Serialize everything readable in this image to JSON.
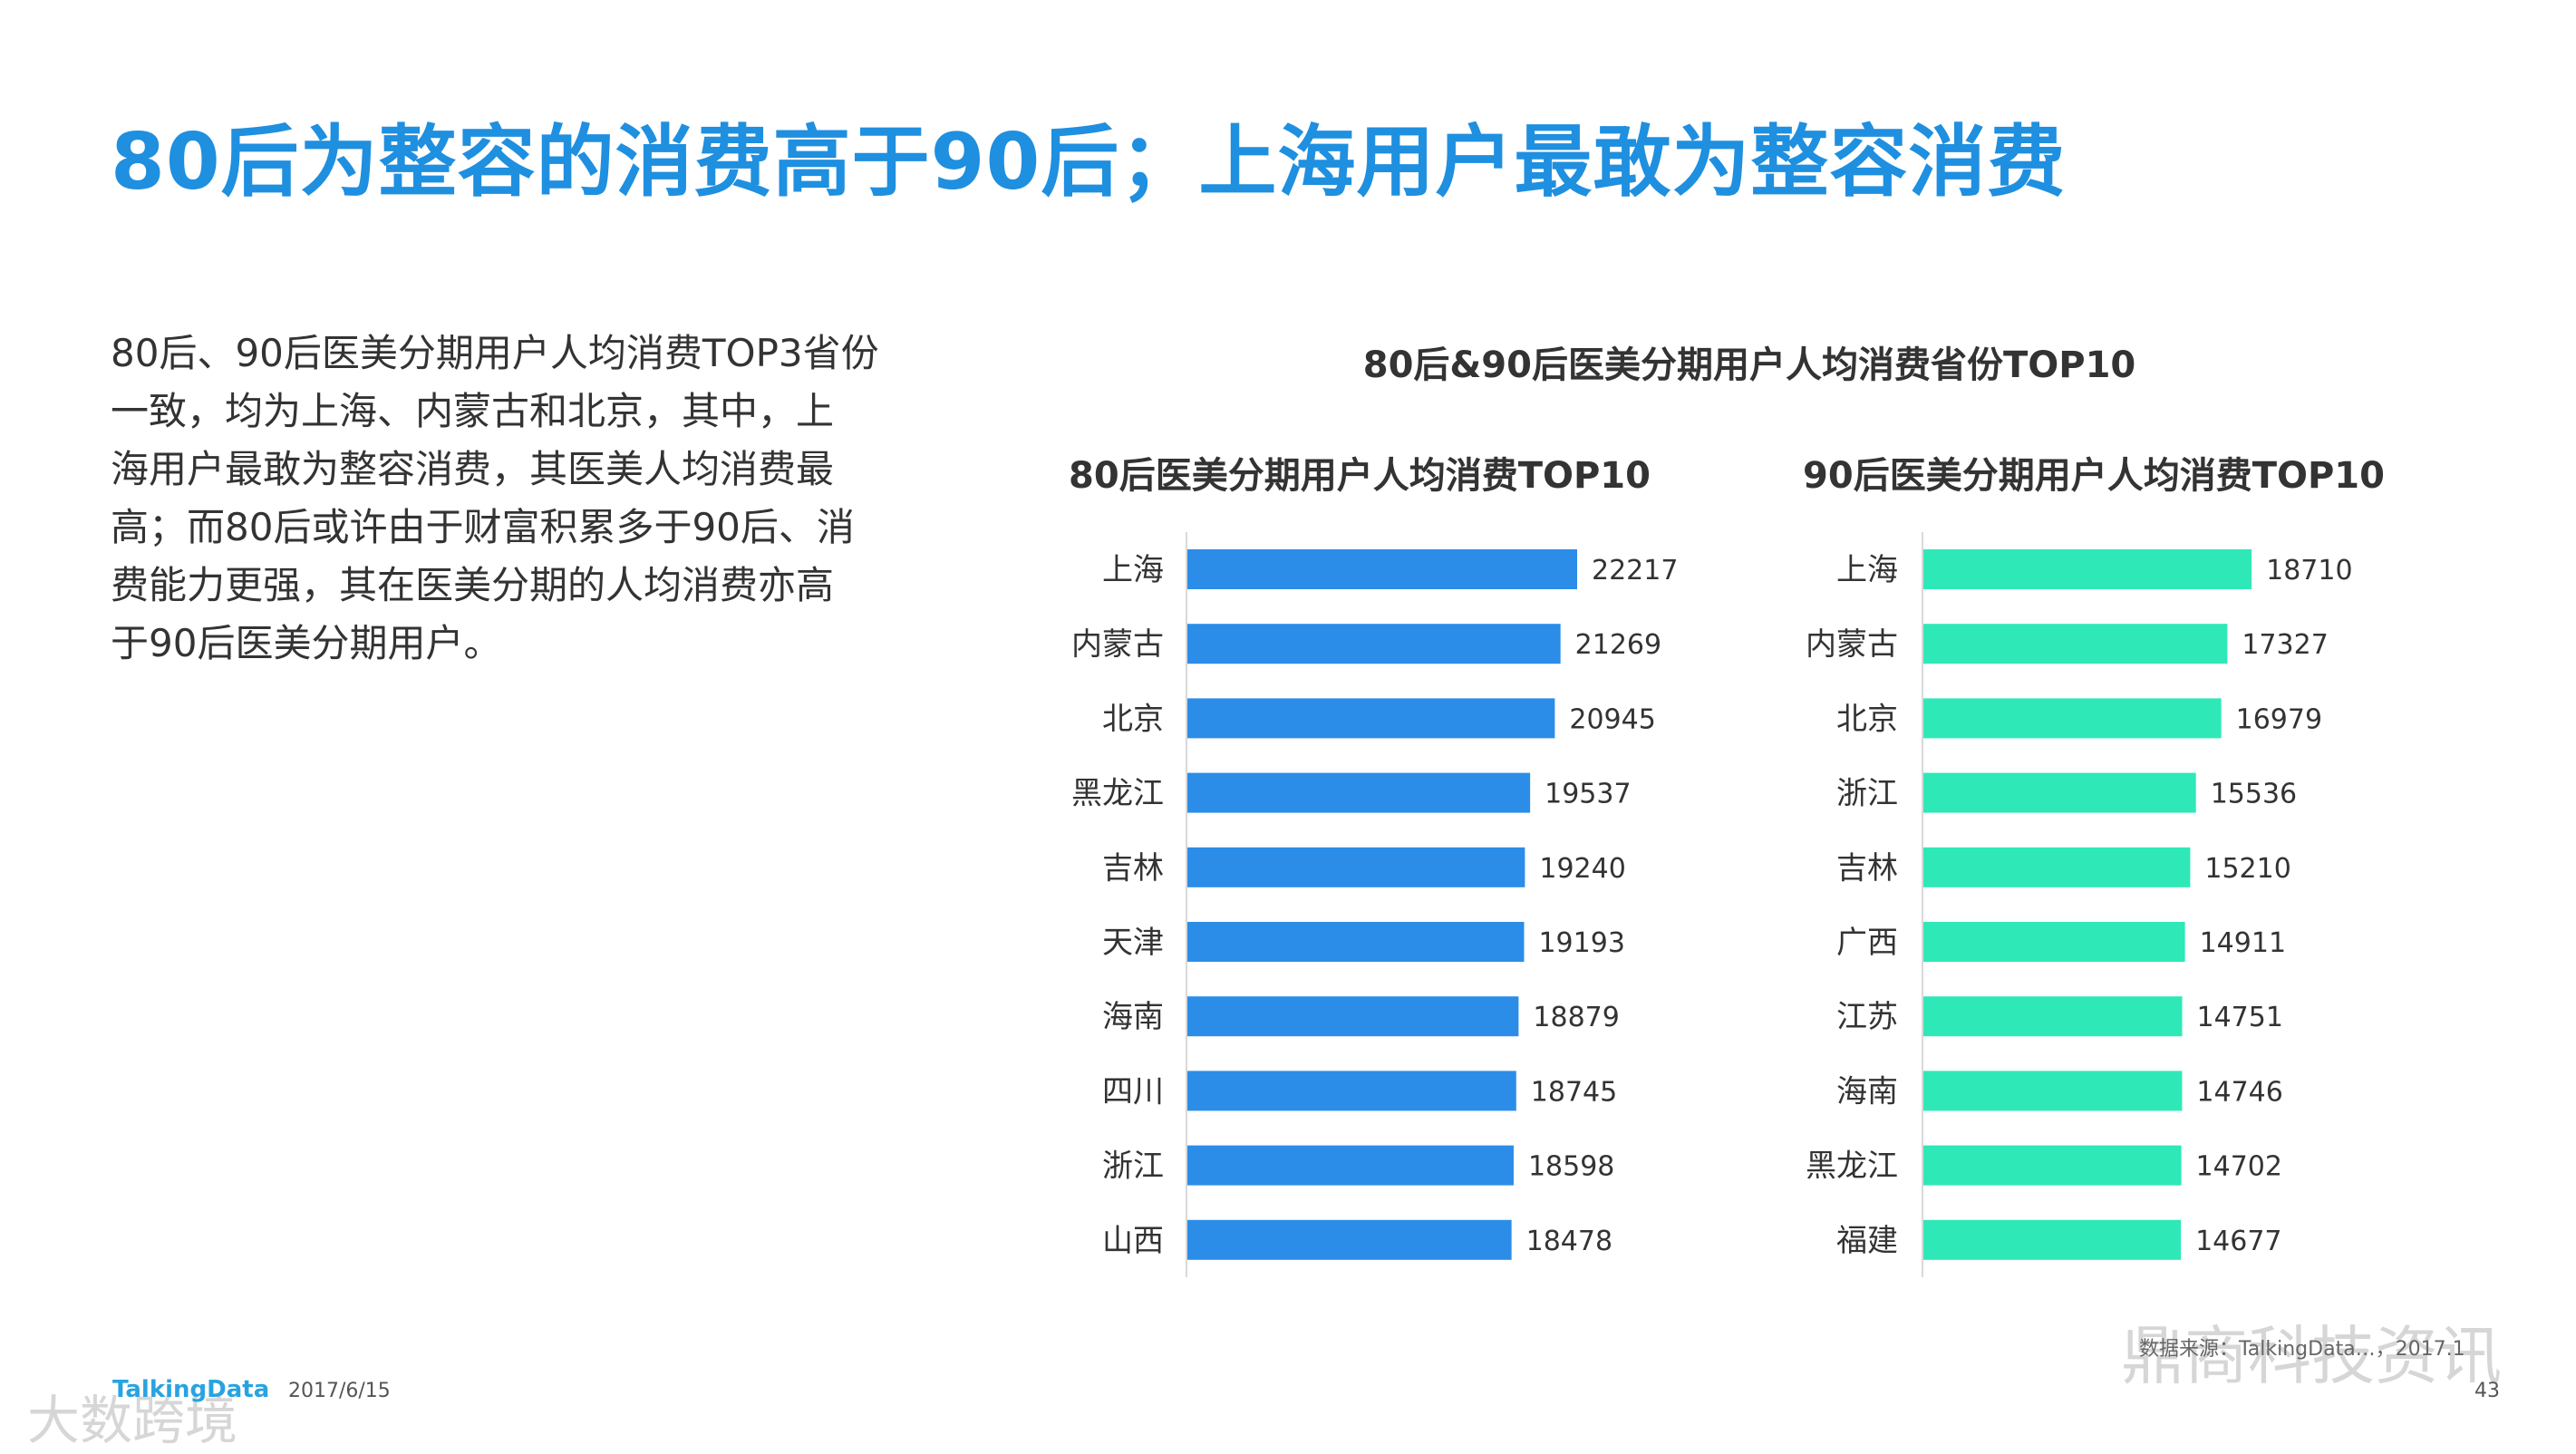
{
  "page": {
    "title": "80后为整容的消费高于90后；上海用户最敢为整容消费",
    "description_lines": [
      "80后、90后医美分期用户人均消费TOP3省份",
      "一致，均为上海、内蒙古和北京，其中，上",
      "海用户最敢为整容消费，其医美人均消费最",
      "高；而80后或许由于财富积累多于90后、消",
      "费能力更强，其在医美分期的人均消费亦高",
      "于90后医美分期用户。"
    ],
    "main_chart_title": "80后&90后医美分期用户人均消费省份TOP10",
    "footer": {
      "logo": "TalkingData",
      "date": "2017/6/15",
      "page_number": "43",
      "source": "数据来源：TalkingData…，2017.1"
    },
    "watermarks": {
      "right": "鼎商科技资讯",
      "left": "大数跨境"
    }
  },
  "chart_data": [
    {
      "type": "bar",
      "orientation": "horizontal",
      "title": "80后医美分期用户人均消费TOP10",
      "categories": [
        "上海",
        "内蒙古",
        "北京",
        "黑龙江",
        "吉林",
        "天津",
        "海南",
        "四川",
        "浙江",
        "山西"
      ],
      "values": [
        22217,
        21269,
        20945,
        19537,
        19240,
        19193,
        18879,
        18745,
        18598,
        18478
      ],
      "color": "#2b8de8",
      "grid": false
    },
    {
      "type": "bar",
      "orientation": "horizontal",
      "title": "90后医美分期用户人均消费TOP10",
      "categories": [
        "上海",
        "内蒙古",
        "北京",
        "浙江",
        "吉林",
        "广西",
        "江苏",
        "海南",
        "黑龙江",
        "福建"
      ],
      "values": [
        18710,
        17327,
        16979,
        15536,
        15210,
        14911,
        14751,
        14746,
        14702,
        14677
      ],
      "color": "#2ee8b8",
      "grid": false
    }
  ]
}
